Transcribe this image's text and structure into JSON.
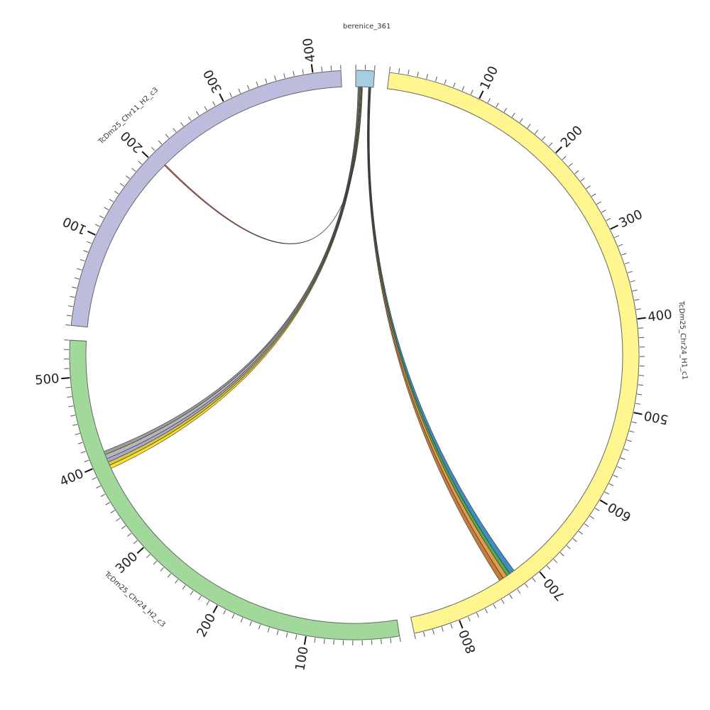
{
  "chart_data": {
    "type": "chord",
    "segments": [
      {
        "id": "berenice",
        "name": "berenice_361",
        "length": 20,
        "color": "#a6cee3"
      },
      {
        "id": "chr24h1",
        "name": "TcDm25_Chr24_H1_c1",
        "length": 850,
        "color": "#fff68f"
      },
      {
        "id": "chr24h2",
        "name": "TcDm25_Chr24_H2_c3",
        "length": 540,
        "color": "#a1d99b"
      },
      {
        "id": "chr11h2",
        "name": "TcDm25_Chr11_H2_c3",
        "length": 430,
        "color": "#bcbddc"
      }
    ],
    "tick_interval": 10,
    "label_interval": 100,
    "links": [
      {
        "from": "berenice",
        "from_range": [
          16.5,
          17.2
        ],
        "to": "chr24h1",
        "to_range": [
          721,
          727
        ],
        "color": "#1f78b4"
      },
      {
        "from": "berenice",
        "from_range": [
          15.9,
          16.5
        ],
        "to": "chr24h1",
        "to_range": [
          727,
          731
        ],
        "color": "#33a02c"
      },
      {
        "from": "berenice",
        "from_range": [
          15.2,
          15.9
        ],
        "to": "chr24h1",
        "to_range": [
          731,
          736
        ],
        "color": "#e08a2e"
      },
      {
        "from": "berenice",
        "from_range": [
          14.6,
          15.2
        ],
        "to": "chr24h1",
        "to_range": [
          736,
          741
        ],
        "color": "#b8651a"
      },
      {
        "from": "berenice",
        "from_range": [
          6.0,
          6.8
        ],
        "to": "chr24h2",
        "to_range": [
          392,
          396
        ],
        "color": "#ffd700"
      },
      {
        "from": "berenice",
        "from_range": [
          5.2,
          6.0
        ],
        "to": "chr24h2",
        "to_range": [
          396,
          400
        ],
        "color": "#c8c020"
      },
      {
        "from": "berenice",
        "from_range": [
          4.4,
          5.2
        ],
        "to": "chr24h2",
        "to_range": [
          400,
          404
        ],
        "color": "#9e9ac8"
      },
      {
        "from": "berenice",
        "from_range": [
          3.4,
          4.4
        ],
        "to": "chr24h2",
        "to_range": [
          404,
          409
        ],
        "color": "#a9a9a9"
      },
      {
        "from": "berenice",
        "from_range": [
          2.6,
          3.4
        ],
        "to": "chr24h2",
        "to_range": [
          409,
          413
        ],
        "color": "#8c8c8c"
      },
      {
        "from": "berenice",
        "from_range": [
          7.2,
          7.6
        ],
        "to": "chr11h2",
        "to_range": [
          206,
          207.5
        ],
        "color": "#d9482b"
      }
    ]
  }
}
